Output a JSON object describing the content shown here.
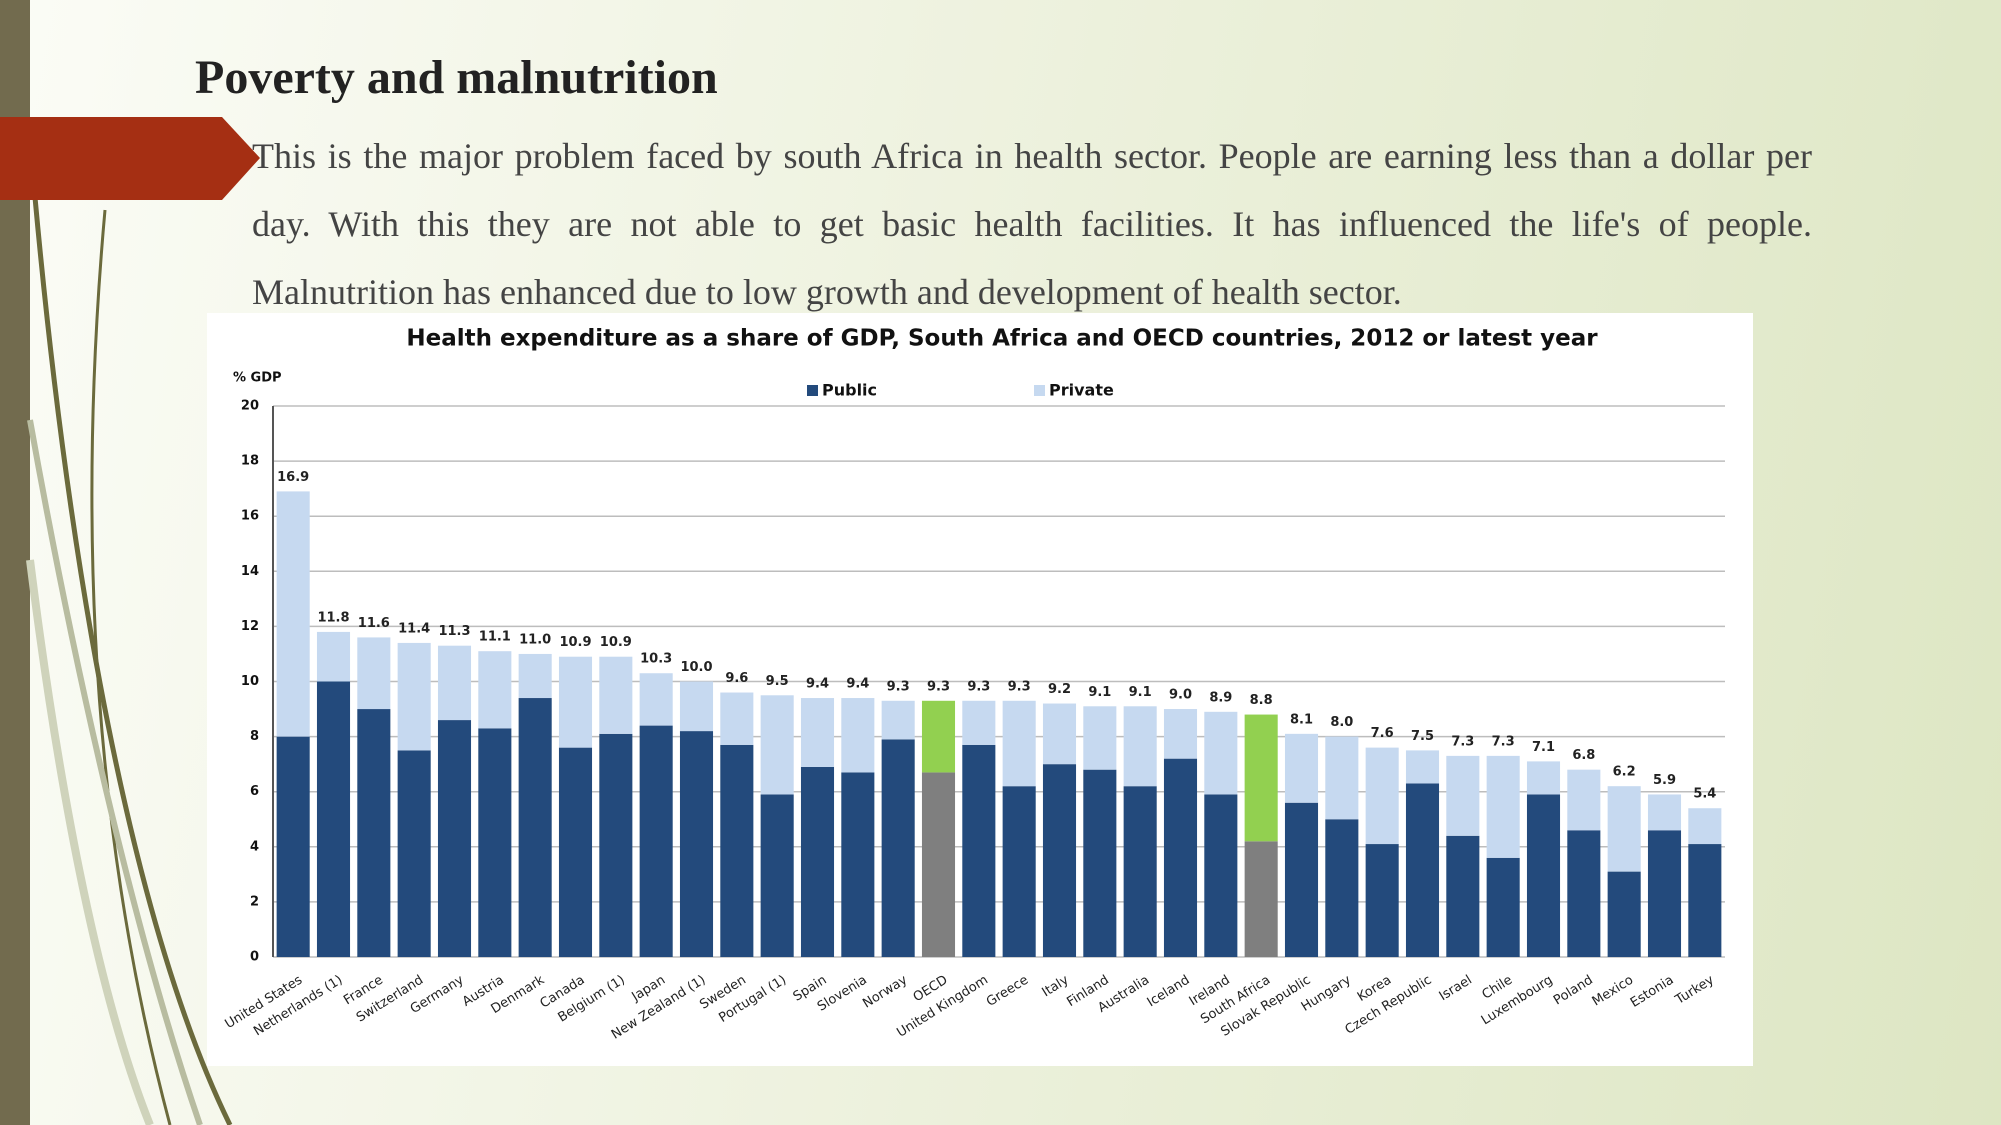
{
  "slide": {
    "title": "Poverty and malnutrition",
    "paragraph": "This is the major problem faced by south Africa in health sector. People are earning less than a dollar per day. With this they are not able to get basic health facilities. It has influenced the life's of people. Malnutrition has enhanced due to low growth and development of health sector."
  },
  "chart_data": {
    "type": "stacked_bar",
    "title": "Health expenditure as a share of GDP, South Africa and OECD countries, 2012 or latest year",
    "y_label": "% GDP",
    "categories": [
      "United States",
      "Netherlands (1)",
      "France",
      "Switzerland",
      "Germany",
      "Austria",
      "Denmark",
      "Canada",
      "Belgium (1)",
      "Japan",
      "New Zealand (1)",
      "Sweden",
      "Portugal (1)",
      "Spain",
      "Slovenia",
      "Norway",
      "OECD",
      "United Kingdom",
      "Greece",
      "Italy",
      "Finland",
      "Australia",
      "Iceland",
      "Ireland",
      "South Africa",
      "Slovak Republic",
      "Hungary",
      "Korea",
      "Czech Republic",
      "Israel",
      "Chile",
      "Luxembourg",
      "Poland",
      "Mexico",
      "Estonia",
      "Turkey"
    ],
    "series": [
      {
        "name": "Public",
        "color": "#234a7c",
        "highlight_color": "#7f7f7f",
        "values": [
          8.0,
          10.0,
          9.0,
          7.5,
          8.6,
          8.3,
          9.4,
          7.6,
          8.1,
          8.4,
          8.2,
          7.7,
          5.9,
          6.9,
          6.7,
          7.9,
          6.7,
          7.7,
          6.2,
          7.0,
          6.8,
          6.2,
          7.2,
          5.9,
          4.2,
          5.6,
          5.0,
          4.1,
          6.3,
          4.4,
          3.6,
          5.9,
          4.6,
          3.1,
          4.6,
          4.1
        ]
      },
      {
        "name": "Private",
        "color": "#c6d9f0",
        "highlight_color": "#92d050",
        "values": [
          8.9,
          1.8,
          2.6,
          3.9,
          2.7,
          2.8,
          1.6,
          3.3,
          2.8,
          1.9,
          1.8,
          1.9,
          3.6,
          2.5,
          2.7,
          1.4,
          2.6,
          1.6,
          3.1,
          2.2,
          2.3,
          2.9,
          1.8,
          3.0,
          4.6,
          2.5,
          3.0,
          3.5,
          1.2,
          2.9,
          3.7,
          1.2,
          2.2,
          3.1,
          1.3,
          1.3
        ]
      }
    ],
    "highlight": [
      false,
      false,
      false,
      false,
      false,
      false,
      false,
      false,
      false,
      false,
      false,
      false,
      false,
      false,
      false,
      false,
      true,
      false,
      false,
      false,
      false,
      false,
      false,
      false,
      true,
      false,
      false,
      false,
      false,
      false,
      false,
      false,
      false,
      false,
      false,
      false
    ],
    "totals": {
      "values": [
        16.9,
        11.8,
        11.6,
        11.4,
        11.3,
        11.1,
        11.0,
        10.9,
        10.9,
        10.3,
        10.0,
        9.6,
        9.5,
        9.4,
        9.4,
        9.3,
        9.3,
        9.3,
        9.3,
        9.2,
        9.1,
        9.1,
        9.0,
        8.9,
        8.8,
        8.1,
        8.0,
        7.6,
        7.5,
        7.3,
        7.3,
        7.1,
        6.8,
        6.2,
        5.9,
        5.4
      ],
      "value_labels": [
        "16.9",
        "11.8",
        "11.6",
        "11.4",
        "11.3",
        "11.1",
        "11.0",
        "10.9",
        "10.9",
        "10.3",
        "10.0",
        "9.6",
        "9.5",
        "9.4",
        "9.4",
        "9.3",
        "9.3",
        "9.3",
        "9.3",
        "9.2",
        "9.1",
        "9.1",
        "9.0",
        "8.9",
        "8.8",
        "8.1",
        "8.0",
        "7.6",
        "7.5",
        "7.3",
        "7.3",
        "7.1",
        "6.8",
        "6.2",
        "5.9",
        "5.4"
      ]
    },
    "ylim": [
      0,
      20
    ],
    "yticks": [
      0,
      2,
      4,
      6,
      8,
      10,
      12,
      14,
      16,
      18,
      20
    ],
    "grid": true
  }
}
